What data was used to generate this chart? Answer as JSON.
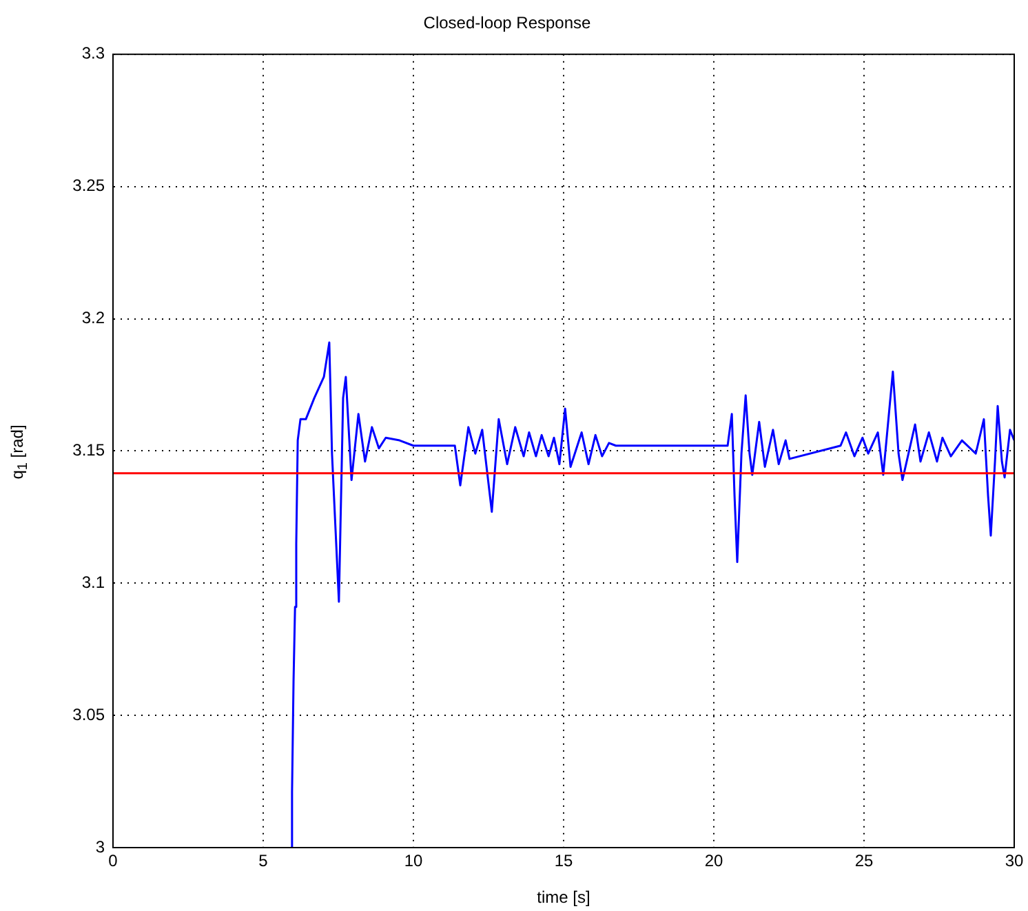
{
  "chart_data": {
    "type": "line",
    "title": "Closed-loop Response",
    "xlabel": "time [s]",
    "ylabel": "q$_{1}$ [rad]",
    "xlim": [
      0,
      30
    ],
    "xticks": [
      0,
      5,
      10,
      15,
      20,
      25,
      30
    ],
    "ylim": [
      3,
      3.3
    ],
    "yticks": [
      3,
      3.05,
      3.1,
      3.15,
      3.2,
      3.25,
      3.3
    ],
    "grid": true,
    "legend": false,
    "ref_lines": [
      {
        "axis": "y",
        "value": 3.1416,
        "color": "#ff0000"
      }
    ],
    "series": [
      {
        "color": "#0000ff",
        "x": [
          5.92,
          5.96,
          6.01,
          6.06,
          6.1,
          6.15,
          6.24,
          6.42,
          6.7,
          7.02,
          7.2,
          7.29,
          7.52,
          7.66,
          7.75,
          7.94,
          8.17,
          8.39,
          8.62,
          8.85,
          9.08,
          9.54,
          10,
          11.38,
          11.56,
          11.83,
          12.06,
          12.29,
          12.61,
          12.84,
          13.12,
          13.39,
          13.67,
          13.85,
          14.08,
          14.27,
          14.5,
          14.68,
          14.86,
          15.05,
          15.23,
          15.6,
          15.83,
          16.06,
          16.28,
          16.51,
          16.74,
          20.46,
          20.6,
          20.69,
          20.78,
          20.92,
          21.06,
          21.19,
          21.28,
          21.51,
          21.7,
          21.97,
          22.16,
          22.39,
          22.52,
          24.22,
          24.4,
          24.68,
          24.95,
          25.14,
          25.46,
          25.64,
          25.96,
          26.15,
          26.28,
          26.7,
          26.88,
          27.16,
          27.43,
          27.61,
          27.89,
          28.26,
          28.72,
          28.99,
          29.13,
          29.22,
          29.36,
          29.45,
          29.59,
          29.68,
          29.86,
          30
        ],
        "values": [
          3,
          3.021,
          3.063,
          3.091,
          3.115,
          3.154,
          3.162,
          3.162,
          3.17,
          3.178,
          3.191,
          3.149,
          3.093,
          3.17,
          3.178,
          3.139,
          3.164,
          3.146,
          3.159,
          3.151,
          3.155,
          3.154,
          3.152,
          3.152,
          3.137,
          3.159,
          3.149,
          3.158,
          3.127,
          3.162,
          3.145,
          3.159,
          3.148,
          3.157,
          3.148,
          3.156,
          3.148,
          3.155,
          3.145,
          3.166,
          3.144,
          3.157,
          3.145,
          3.156,
          3.148,
          3.153,
          3.152,
          3.152,
          3.164,
          3.133,
          3.108,
          3.149,
          3.171,
          3.149,
          3.141,
          3.161,
          3.144,
          3.158,
          3.145,
          3.154,
          3.147,
          3.152,
          3.157,
          3.148,
          3.155,
          3.149,
          3.157,
          3.141,
          3.18,
          3.149,
          3.139,
          3.16,
          3.146,
          3.157,
          3.146,
          3.155,
          3.148,
          3.154,
          3.149,
          3.162,
          3.133,
          3.118,
          3.146,
          3.167,
          3.146,
          3.14,
          3.158,
          3.154
        ]
      }
    ]
  }
}
